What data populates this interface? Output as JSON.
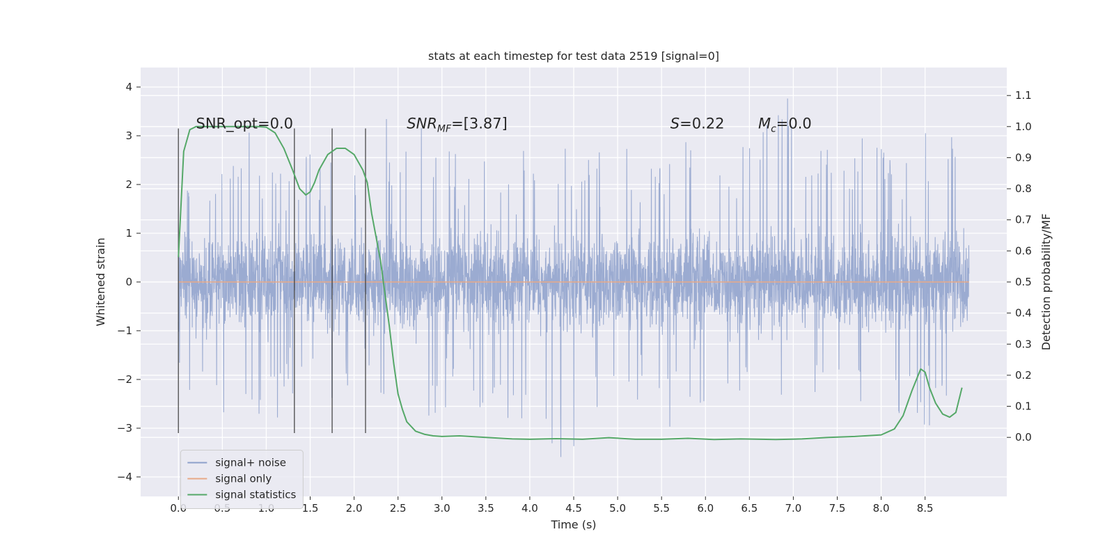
{
  "chart_data": {
    "type": "line",
    "title": "stats at each timestep for test data 2519 [signal=0]",
    "xlabel": "Time (s)",
    "ylabel": "Whitened strain",
    "y2label": "Detection probability/MF",
    "xlim": [
      -0.43,
      9.43
    ],
    "ylim": [
      -4.4,
      4.4
    ],
    "y2lim": [
      -0.19,
      1.19
    ],
    "xticks": [
      "0.0",
      "0.5",
      "1.0",
      "1.5",
      "2.0",
      "2.5",
      "3.0",
      "3.5",
      "4.0",
      "4.5",
      "5.0",
      "5.5",
      "6.0",
      "6.5",
      "7.0",
      "7.5",
      "8.0",
      "8.5"
    ],
    "yticks": [
      "−4",
      "−3",
      "−2",
      "−1",
      "0",
      "1",
      "2",
      "3",
      "4"
    ],
    "y2ticks": [
      "0.0",
      "0.1",
      "0.2",
      "0.3",
      "0.4",
      "0.5",
      "0.6",
      "0.7",
      "0.8",
      "0.9",
      "1.0",
      "1.1"
    ],
    "grid": true,
    "legend_position": "lower-left",
    "annotations": [
      {
        "name": "snr-opt",
        "text": "SNR_opt=0.0",
        "x": 0.2,
        "y": 3.15
      },
      {
        "name": "snr-mf",
        "text": "SNR",
        "sub": "MF",
        "rest": "=[3.87]",
        "x": 2.6,
        "y": 3.15
      },
      {
        "name": "s-stat",
        "text": "S",
        "rest": "=0.22",
        "x": 5.6,
        "y": 3.15
      },
      {
        "name": "mc-stat",
        "text": "M",
        "sub": "c",
        "rest": "=0.0",
        "x": 6.6,
        "y": 3.15
      }
    ],
    "vlines": [
      0.0,
      1.32,
      1.75,
      2.13
    ],
    "vline_range": [
      -3.1,
      3.15
    ],
    "series": [
      {
        "name": "signal+ noise",
        "color": "#8da0cb",
        "axis": "left",
        "kind": "noise",
        "x_range": [
          0.0,
          9.0
        ],
        "core_amplitude": 1.25,
        "peak_max": [
          [
            0.0,
            1.6
          ],
          [
            0.1,
            2.0
          ],
          [
            0.3,
            2.4
          ],
          [
            0.5,
            2.6
          ],
          [
            0.7,
            2.7
          ],
          [
            0.8,
            3.4
          ],
          [
            1.0,
            2.9
          ],
          [
            1.2,
            2.6
          ],
          [
            1.4,
            2.8
          ],
          [
            1.6,
            2.5
          ],
          [
            1.8,
            2.7
          ],
          [
            1.95,
            2.2
          ],
          [
            2.2,
            2.8
          ],
          [
            2.35,
            3.5
          ],
          [
            2.5,
            2.6
          ],
          [
            2.65,
            3.2
          ],
          [
            3.0,
            3.1
          ],
          [
            3.2,
            2.5
          ],
          [
            3.5,
            2.7
          ],
          [
            3.8,
            2.8
          ],
          [
            4.0,
            3.0
          ],
          [
            4.2,
            2.6
          ],
          [
            4.4,
            2.8
          ],
          [
            4.6,
            2.6
          ],
          [
            4.9,
            2.7
          ],
          [
            5.1,
            2.9
          ],
          [
            5.3,
            2.4
          ],
          [
            5.6,
            2.8
          ],
          [
            5.9,
            3.0
          ],
          [
            6.1,
            2.8
          ],
          [
            6.3,
            2.6
          ],
          [
            6.55,
            3.0
          ],
          [
            6.75,
            4.0
          ],
          [
            6.95,
            4.0
          ],
          [
            7.2,
            3.0
          ],
          [
            7.5,
            2.9
          ],
          [
            7.8,
            3.0
          ],
          [
            8.1,
            2.8
          ],
          [
            8.3,
            2.9
          ],
          [
            8.45,
            3.4
          ],
          [
            8.65,
            3.2
          ],
          [
            9.0,
            2.8
          ]
        ],
        "peak_min": [
          [
            0.0,
            -1.8
          ],
          [
            0.1,
            -2.7
          ],
          [
            0.3,
            -2.4
          ],
          [
            0.5,
            -2.9
          ],
          [
            0.7,
            -2.3
          ],
          [
            0.9,
            -2.6
          ],
          [
            1.0,
            -3.3
          ],
          [
            1.2,
            -2.5
          ],
          [
            1.4,
            -2.6
          ],
          [
            1.6,
            -2.9
          ],
          [
            1.8,
            -2.3
          ],
          [
            2.0,
            -2.4
          ],
          [
            2.2,
            -2.5
          ],
          [
            2.45,
            -3.4
          ],
          [
            2.6,
            -2.4
          ],
          [
            2.8,
            -2.9
          ],
          [
            3.0,
            -2.7
          ],
          [
            3.3,
            -3.1
          ],
          [
            3.6,
            -2.6
          ],
          [
            4.0,
            -3.7
          ],
          [
            4.3,
            -3.4
          ],
          [
            4.4,
            -3.95
          ],
          [
            4.6,
            -3.0
          ],
          [
            4.8,
            -3.4
          ],
          [
            5.0,
            -2.8
          ],
          [
            5.3,
            -2.6
          ],
          [
            5.5,
            -3.8
          ],
          [
            5.8,
            -2.9
          ],
          [
            6.1,
            -2.6
          ],
          [
            6.4,
            -2.7
          ],
          [
            6.8,
            -2.5
          ],
          [
            7.2,
            -2.8
          ],
          [
            7.6,
            -2.6
          ],
          [
            7.95,
            -3.3
          ],
          [
            8.2,
            -2.8
          ],
          [
            8.45,
            -3.4
          ],
          [
            8.7,
            -2.6
          ],
          [
            9.0,
            -2.0
          ]
        ]
      },
      {
        "name": "signal only",
        "color": "#e8a987",
        "axis": "left",
        "x": [
          0.0,
          9.0
        ],
        "y": [
          0.0,
          0.0
        ]
      },
      {
        "name": "signal statistics",
        "color": "#55a868",
        "axis": "right",
        "x": [
          0.0,
          0.06,
          0.13,
          0.2,
          0.3,
          0.5,
          0.7,
          0.9,
          1.0,
          1.1,
          1.2,
          1.3,
          1.38,
          1.45,
          1.5,
          1.55,
          1.6,
          1.7,
          1.8,
          1.9,
          2.0,
          2.1,
          2.15,
          2.2,
          2.3,
          2.4,
          2.45,
          2.5,
          2.55,
          2.6,
          2.7,
          2.8,
          2.9,
          3.0,
          3.2,
          3.5,
          3.8,
          4.0,
          4.3,
          4.6,
          4.9,
          5.2,
          5.5,
          5.8,
          6.1,
          6.4,
          6.8,
          7.1,
          7.4,
          7.7,
          8.0,
          8.15,
          8.25,
          8.35,
          8.45,
          8.5,
          8.55,
          8.62,
          8.7,
          8.78,
          8.85,
          8.92
        ],
        "y": [
          0.58,
          0.92,
          0.99,
          1.0,
          1.0,
          1.0,
          1.0,
          1.0,
          0.998,
          0.98,
          0.93,
          0.86,
          0.8,
          0.78,
          0.79,
          0.82,
          0.86,
          0.91,
          0.93,
          0.93,
          0.91,
          0.86,
          0.82,
          0.72,
          0.57,
          0.36,
          0.24,
          0.14,
          0.09,
          0.05,
          0.02,
          0.01,
          0.005,
          0.003,
          0.005,
          0.0,
          -0.005,
          -0.006,
          -0.004,
          -0.006,
          -0.001,
          -0.006,
          -0.006,
          -0.003,
          -0.007,
          -0.005,
          -0.007,
          -0.005,
          0.0,
          0.003,
          0.008,
          0.027,
          0.07,
          0.15,
          0.22,
          0.21,
          0.16,
          0.11,
          0.075,
          0.065,
          0.08,
          0.16
        ]
      }
    ]
  },
  "colors": {
    "plot_bg": "#eaeaf2",
    "grid": "#ffffff",
    "vline": "#3a3a3a"
  }
}
